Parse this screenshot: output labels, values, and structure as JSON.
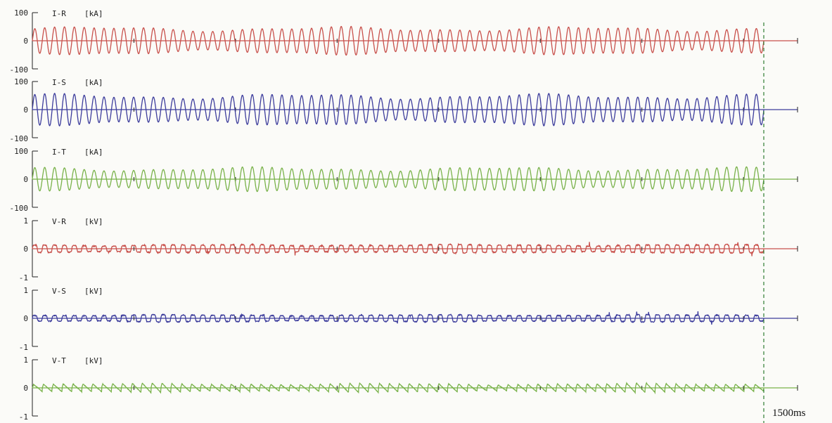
{
  "chart_data": {
    "type": "line",
    "time_end_label": "1500ms",
    "x_end_ms": 1500,
    "colors": {
      "red_phase": "#c8504b",
      "blue_phase": "#3c3c9c",
      "green_phase": "#79b24a",
      "axis": "#222222",
      "marker": "#2e7d32"
    },
    "channels": [
      {
        "name": "I-R",
        "unit": "[kA]",
        "ylim": [
          -100,
          100
        ],
        "ticks": [
          "100",
          "0",
          "-100"
        ],
        "color": "#c8504b",
        "waveform": "sine",
        "amplitude": 42,
        "cycles": 74
      },
      {
        "name": "I-S",
        "unit": "[kA]",
        "ylim": [
          -100,
          100
        ],
        "ticks": [
          "100",
          "0",
          "-100"
        ],
        "color": "#3c3c9c",
        "waveform": "sine",
        "amplitude": 47,
        "cycles": 74
      },
      {
        "name": "I-T",
        "unit": "[kA]",
        "ylim": [
          -100,
          100
        ],
        "ticks": [
          "100",
          "0",
          "-100"
        ],
        "color": "#79b24a",
        "waveform": "sine",
        "amplitude": 36,
        "cycles": 74
      },
      {
        "name": "V-R",
        "unit": "[kV]",
        "ylim": [
          -1,
          1
        ],
        "ticks": [
          "1",
          "0",
          "-1"
        ],
        "color": "#c8504b",
        "waveform": "square-ish",
        "amplitude": 0.14,
        "cycles": 74
      },
      {
        "name": "V-S",
        "unit": "[kV]",
        "ylim": [
          -1,
          1
        ],
        "ticks": [
          "1",
          "0",
          "-1"
        ],
        "color": "#3c3c9c",
        "waveform": "square-ish",
        "amplitude": 0.12,
        "cycles": 74
      },
      {
        "name": "V-T",
        "unit": "[kV]",
        "ylim": [
          -1,
          1
        ],
        "ticks": [
          "1",
          "0",
          "-1"
        ],
        "color": "#79b24a",
        "waveform": "sawtooth",
        "amplitude": 0.14,
        "cycles": 74
      }
    ]
  }
}
